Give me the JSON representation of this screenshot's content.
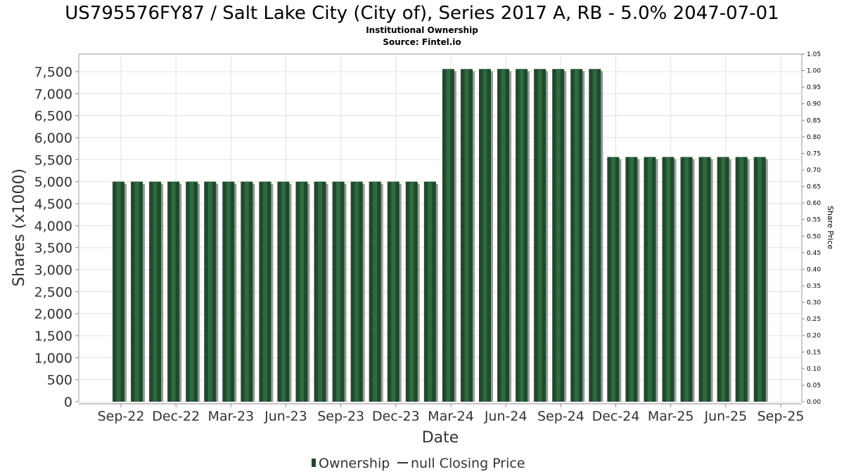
{
  "chart_data": {
    "type": "bar",
    "title": "US795576FY87 / Salt Lake City (City of), Series 2017 A, RB - 5.0% 2047-07-01",
    "subtitle": "Institutional Ownership",
    "source": "Source: Fintel.io",
    "xlabel": "Date",
    "ylabel": "Shares (x1000)",
    "y2label": "Share Price",
    "ylim": [
      0,
      7900
    ],
    "y2lim": [
      0,
      1.05
    ],
    "yticks": [
      0,
      500,
      1000,
      1500,
      2000,
      2500,
      3000,
      3500,
      4000,
      4500,
      5000,
      5500,
      6000,
      6500,
      7000,
      7500
    ],
    "ytick_labels": [
      "0",
      "500",
      "1,000",
      "1,500",
      "2,000",
      "2,500",
      "3,000",
      "3,500",
      "4,000",
      "4,500",
      "5,000",
      "5,500",
      "6,000",
      "6,500",
      "7,000",
      "7,500"
    ],
    "y2ticks": [
      "0.00",
      "0.05",
      "0.10",
      "0.15",
      "0.20",
      "0.25",
      "0.30",
      "0.35",
      "0.40",
      "0.45",
      "0.50",
      "0.55",
      "0.60",
      "0.65",
      "0.70",
      "0.75",
      "0.80",
      "0.85",
      "0.90",
      "0.95",
      "1.00",
      "1.05"
    ],
    "xticks": [
      "Sep-22",
      "Dec-22",
      "Mar-23",
      "Jun-23",
      "Sep-23",
      "Dec-23",
      "Mar-24",
      "Jun-24",
      "Sep-24",
      "Dec-24",
      "Mar-25",
      "Jun-25",
      "Sep-25"
    ],
    "grid": true,
    "legend_position": "bottom",
    "colors": {
      "bar": "#1f4a2c",
      "bar_stripe": "#2f6a40",
      "bar_shadow": "#9a9a9a",
      "grid": "#e0e0e0",
      "frame": "#999999"
    },
    "series": [
      {
        "name": "Ownership",
        "values": [
          5000,
          5000,
          5000,
          5000,
          5000,
          5000,
          5000,
          5000,
          5000,
          5000,
          5000,
          5000,
          5000,
          5000,
          5000,
          5000,
          5000,
          5000,
          7560,
          7560,
          7560,
          7560,
          7560,
          7560,
          7560,
          7560,
          7560,
          5560,
          5560,
          5560,
          5560,
          5560,
          5560,
          5560,
          5560,
          5560
        ]
      }
    ],
    "legend": [
      "Ownership",
      "null Closing Price"
    ]
  }
}
